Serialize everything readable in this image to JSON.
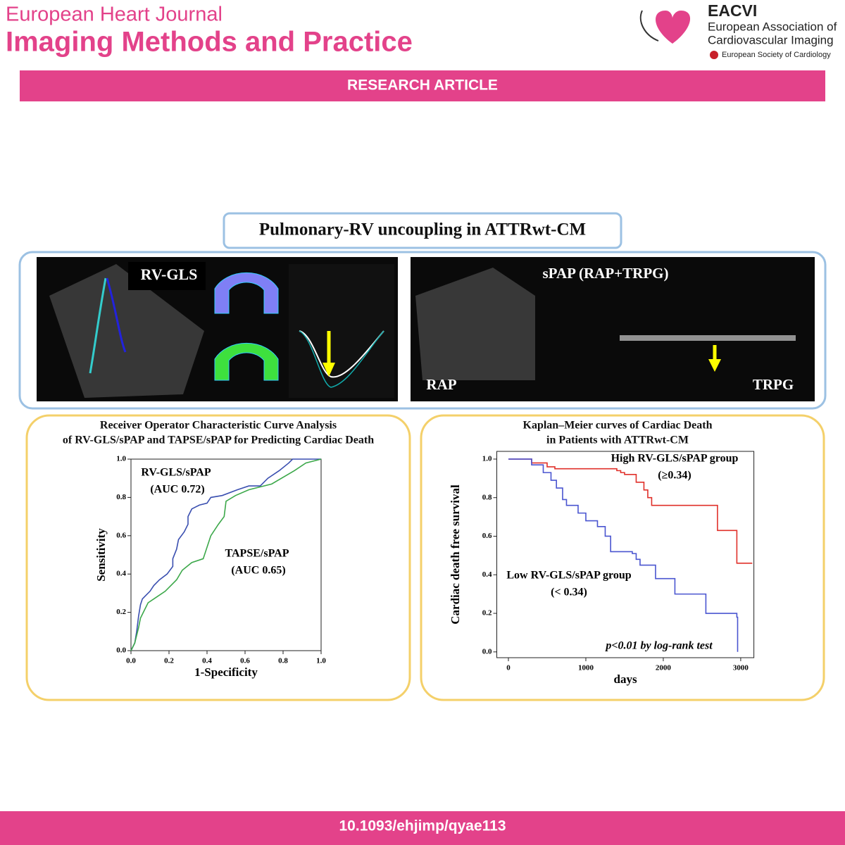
{
  "header": {
    "journal": "European Heart Journal",
    "title": "Imaging Methods and Practice",
    "logo": {
      "name": "EACVI",
      "line1": "European Association of",
      "line2": "Cardiovascular Imaging",
      "society": "European Society of Cardiology"
    }
  },
  "banner": "RESEARCH ARTICLE",
  "panel_title": "Pulmonary-RV uncoupling in ATTRwt-CM",
  "images": {
    "left_label": "RV-GLS",
    "right_label": "sPAP (RAP+TRPG)",
    "rap": "RAP",
    "trpg": "TRPG"
  },
  "chart_data": [
    {
      "type": "line",
      "title": [
        "Receiver Operator Characteristic Curve Analysis",
        "of RV-GLS/sPAP and TAPSE/sPAP for Predicting Cardiac Death"
      ],
      "x_label": "1-Specificity",
      "y_label": "Sensitivity",
      "xlim": [
        0,
        1
      ],
      "ylim": [
        0,
        1
      ],
      "xticks": [
        {
          "value": 0,
          "label": "0.0"
        },
        0.2,
        0.4,
        0.6,
        0.8,
        {
          "value": 1,
          "label": "1.0"
        }
      ],
      "yticks": [
        {
          "value": 0,
          "label": "0.0"
        },
        0.2,
        0.4,
        0.6,
        0.8,
        {
          "value": 1,
          "label": "1.0"
        }
      ],
      "step": false,
      "series": [
        {
          "name": "RV-GLS/sPAP",
          "color": "#3a4fb0",
          "x": [
            0,
            0.02,
            0.03,
            0.04,
            0.05,
            0.06,
            0.08,
            0.1,
            0.12,
            0.15,
            0.19,
            0.22,
            0.22,
            0.24,
            0.25,
            0.28,
            0.3,
            0.3,
            0.32,
            0.36,
            0.4,
            0.42,
            0.48,
            0.56,
            0.62,
            0.68,
            0.72,
            0.78,
            0.83,
            0.85,
            1
          ],
          "values": [
            0,
            0.04,
            0.1,
            0.18,
            0.24,
            0.27,
            0.29,
            0.31,
            0.34,
            0.37,
            0.4,
            0.44,
            0.48,
            0.53,
            0.58,
            0.62,
            0.66,
            0.7,
            0.74,
            0.76,
            0.77,
            0.8,
            0.81,
            0.84,
            0.86,
            0.86,
            0.9,
            0.94,
            0.98,
            1,
            1
          ]
        },
        {
          "name": "TAPSE/sPAP",
          "color": "#3ca84a",
          "x": [
            0,
            0.02,
            0.04,
            0.05,
            0.07,
            0.09,
            0.12,
            0.18,
            0.24,
            0.27,
            0.32,
            0.38,
            0.4,
            0.42,
            0.46,
            0.49,
            0.5,
            0.55,
            0.62,
            0.74,
            0.86,
            0.92,
            1
          ],
          "values": [
            0,
            0.04,
            0.12,
            0.17,
            0.21,
            0.25,
            0.27,
            0.31,
            0.37,
            0.42,
            0.46,
            0.48,
            0.54,
            0.6,
            0.66,
            0.7,
            0.78,
            0.81,
            0.84,
            0.87,
            0.94,
            0.98,
            1
          ]
        }
      ],
      "annotations": [
        "(AUC 0.72)",
        "(AUC 0.65)"
      ]
    },
    {
      "type": "line",
      "title": [
        "Kaplan–Meier curves of Cardiac Death",
        "in Patients with ATTRwt-CM"
      ],
      "x_label": "days",
      "y_label": "Cardiac death free survival",
      "xlim": [
        -150,
        3170
      ],
      "ylim": [
        -0.03,
        1.04
      ],
      "xticks": [
        0,
        1000,
        2000,
        3000
      ],
      "yticks": [
        {
          "value": 0,
          "label": "0.0"
        },
        0.2,
        0.4,
        0.6,
        0.8,
        {
          "value": 1,
          "label": "1.0"
        }
      ],
      "step": true,
      "series": [
        {
          "name": "High RV-GLS/sPAP group",
          "color": "#e0302a",
          "x": [
            0,
            300,
            500,
            600,
            1400,
            1450,
            1500,
            1650,
            1750,
            1800,
            1850,
            2700,
            2950,
            3150
          ],
          "values": [
            1,
            0.98,
            0.96,
            0.95,
            0.94,
            0.93,
            0.92,
            0.88,
            0.84,
            0.8,
            0.76,
            0.63,
            0.46,
            0.46
          ]
        },
        {
          "name": "Low RV-GLS/sPAP group",
          "color": "#4a55d0",
          "x": [
            0,
            300,
            450,
            550,
            620,
            700,
            750,
            900,
            1000,
            1150,
            1250,
            1320,
            1600,
            1650,
            1700,
            1900,
            2150,
            2550,
            2950,
            2960
          ],
          "values": [
            1,
            0.97,
            0.93,
            0.89,
            0.85,
            0.79,
            0.76,
            0.72,
            0.68,
            0.65,
            0.6,
            0.52,
            0.51,
            0.48,
            0.45,
            0.38,
            0.3,
            0.2,
            0.18,
            0
          ]
        }
      ],
      "annotations": [
        "(≥0.34)",
        "(< 0.34)",
        "p<0.01 by log-rank test"
      ]
    }
  ],
  "footer": "10.1093/ehjimp/qyae113"
}
